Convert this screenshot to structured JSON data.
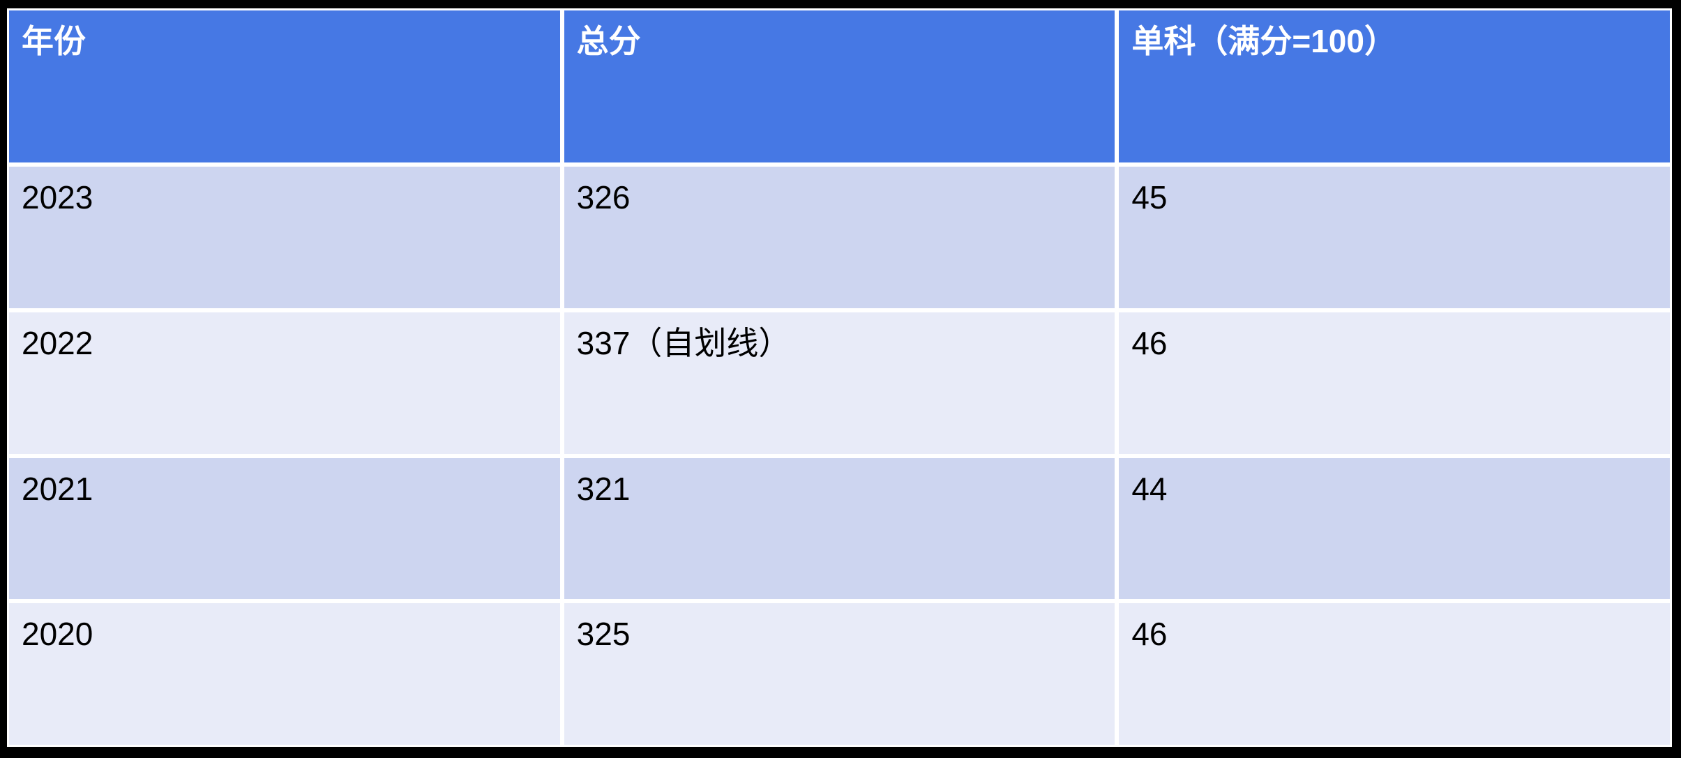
{
  "colors": {
    "background": "#000000",
    "gridline": "#ffffff",
    "header_bg": "#4678E4",
    "header_text": "#ffffff",
    "row_odd_bg": "#CDD5F0",
    "row_even_bg": "#E8EBF8",
    "cell_text": "#000000"
  },
  "table": {
    "header": [
      "年份",
      "总分",
      "单科（满分=100）"
    ],
    "rows": [
      {
        "cells": [
          "2023",
          "326",
          "45"
        ]
      },
      {
        "cells": [
          "2022",
          "337（自划线）",
          "46"
        ]
      },
      {
        "cells": [
          "2021",
          "321",
          "44"
        ]
      },
      {
        "cells": [
          "2020",
          "325",
          "46"
        ]
      }
    ]
  },
  "chart_data": {
    "type": "table",
    "title": "",
    "columns": [
      "年份",
      "总分",
      "单科（满分=100）"
    ],
    "rows": [
      [
        "2023",
        "326",
        "45"
      ],
      [
        "2022",
        "337（自划线）",
        "46"
      ],
      [
        "2021",
        "321",
        "44"
      ],
      [
        "2020",
        "325",
        "46"
      ]
    ]
  }
}
